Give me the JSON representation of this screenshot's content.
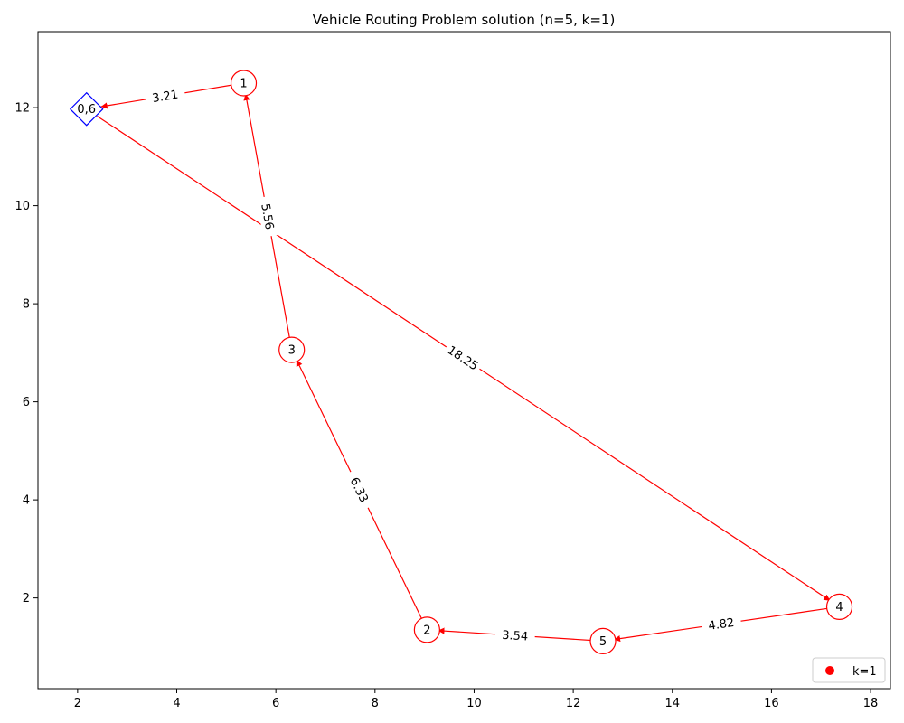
{
  "chart_data": {
    "type": "network",
    "title": "Vehicle Routing Problem solution (n=5, k=1)",
    "xlim": [
      1.2,
      18.4
    ],
    "ylim": [
      0.15,
      13.55
    ],
    "x_ticks": [
      2,
      4,
      6,
      8,
      10,
      12,
      14,
      16,
      18
    ],
    "y_ticks": [
      2,
      4,
      6,
      8,
      10,
      12
    ],
    "grid": false,
    "legend": {
      "placement": "lower-right",
      "entries": [
        {
          "label": "k=1",
          "color": "#ff0000"
        }
      ]
    },
    "edge_color": "#ff0000",
    "depot_color": "#0000ff",
    "customer_color": "#ff0000",
    "nodes": [
      {
        "id": "depot",
        "label": "0,6",
        "x": 2.18,
        "y": 11.97,
        "shape": "diamond"
      },
      {
        "id": "n1",
        "label": "1",
        "x": 5.35,
        "y": 12.5,
        "shape": "circle"
      },
      {
        "id": "n2",
        "label": "2",
        "x": 9.05,
        "y": 1.35,
        "shape": "circle"
      },
      {
        "id": "n3",
        "label": "3",
        "x": 6.32,
        "y": 7.06,
        "shape": "circle"
      },
      {
        "id": "n4",
        "label": "4",
        "x": 17.37,
        "y": 1.82,
        "shape": "circle"
      },
      {
        "id": "n5",
        "label": "5",
        "x": 12.6,
        "y": 1.12,
        "shape": "circle"
      }
    ],
    "edges": [
      {
        "from": "depot",
        "to": "n4",
        "label": "18.25"
      },
      {
        "from": "n4",
        "to": "n5",
        "label": "4.82"
      },
      {
        "from": "n5",
        "to": "n2",
        "label": "3.54"
      },
      {
        "from": "n2",
        "to": "n3",
        "label": "6.33"
      },
      {
        "from": "n3",
        "to": "n1",
        "label": "5.56"
      },
      {
        "from": "n1",
        "to": "depot",
        "label": "3.21"
      }
    ]
  }
}
